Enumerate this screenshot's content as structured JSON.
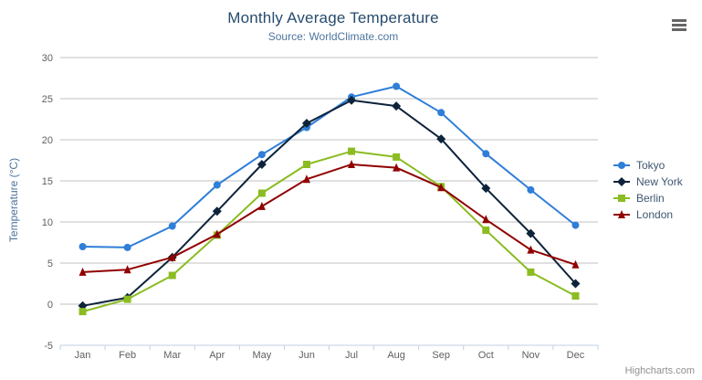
{
  "header": {
    "title": "Monthly Average Temperature",
    "subtitle": "Source: WorldClimate.com"
  },
  "credits": {
    "label": "Highcharts.com"
  },
  "icons": {
    "export": "hamburger-icon"
  },
  "axis": {
    "y_tick_labels": [
      "-5",
      "0",
      "5",
      "10",
      "15",
      "20",
      "25",
      "30"
    ],
    "x_tick_labels": [
      "Jan",
      "Feb",
      "Mar",
      "Apr",
      "May",
      "Jun",
      "Jul",
      "Aug",
      "Sep",
      "Oct",
      "Nov",
      "Dec"
    ]
  },
  "chart_data": {
    "type": "line",
    "title": "Monthly Average Temperature",
    "subtitle": "Source: WorldClimate.com",
    "categories": [
      "Jan",
      "Feb",
      "Mar",
      "Apr",
      "May",
      "Jun",
      "Jul",
      "Aug",
      "Sep",
      "Oct",
      "Nov",
      "Dec"
    ],
    "series": [
      {
        "name": "Tokyo",
        "color": "#2f7ed8",
        "marker": "circle",
        "values": [
          7.0,
          6.9,
          9.5,
          14.5,
          18.2,
          21.5,
          25.2,
          26.5,
          23.3,
          18.3,
          13.9,
          9.6
        ]
      },
      {
        "name": "New York",
        "color": "#0d233a",
        "marker": "diamond",
        "values": [
          -0.2,
          0.8,
          5.7,
          11.3,
          17.0,
          22.0,
          24.8,
          24.1,
          20.1,
          14.1,
          8.6,
          2.5
        ]
      },
      {
        "name": "Berlin",
        "color": "#8bbc21",
        "marker": "square",
        "values": [
          -0.9,
          0.6,
          3.5,
          8.4,
          13.5,
          17.0,
          18.6,
          17.9,
          14.3,
          9.0,
          3.9,
          1.0
        ]
      },
      {
        "name": "London",
        "color": "#910000",
        "marker": "triangle",
        "values": [
          3.9,
          4.2,
          5.7,
          8.5,
          11.9,
          15.2,
          17.0,
          16.6,
          14.2,
          10.3,
          6.6,
          4.8
        ]
      }
    ],
    "xlabel": "",
    "ylabel": "Temperature (°C)",
    "ylim": [
      -5,
      30
    ],
    "ytick_step": 5,
    "grid": true,
    "legend_position": "right",
    "grid_color": "#c0c0c0",
    "axis_line_color": "#c0d0e0",
    "axis_label_color": "#606060"
  }
}
